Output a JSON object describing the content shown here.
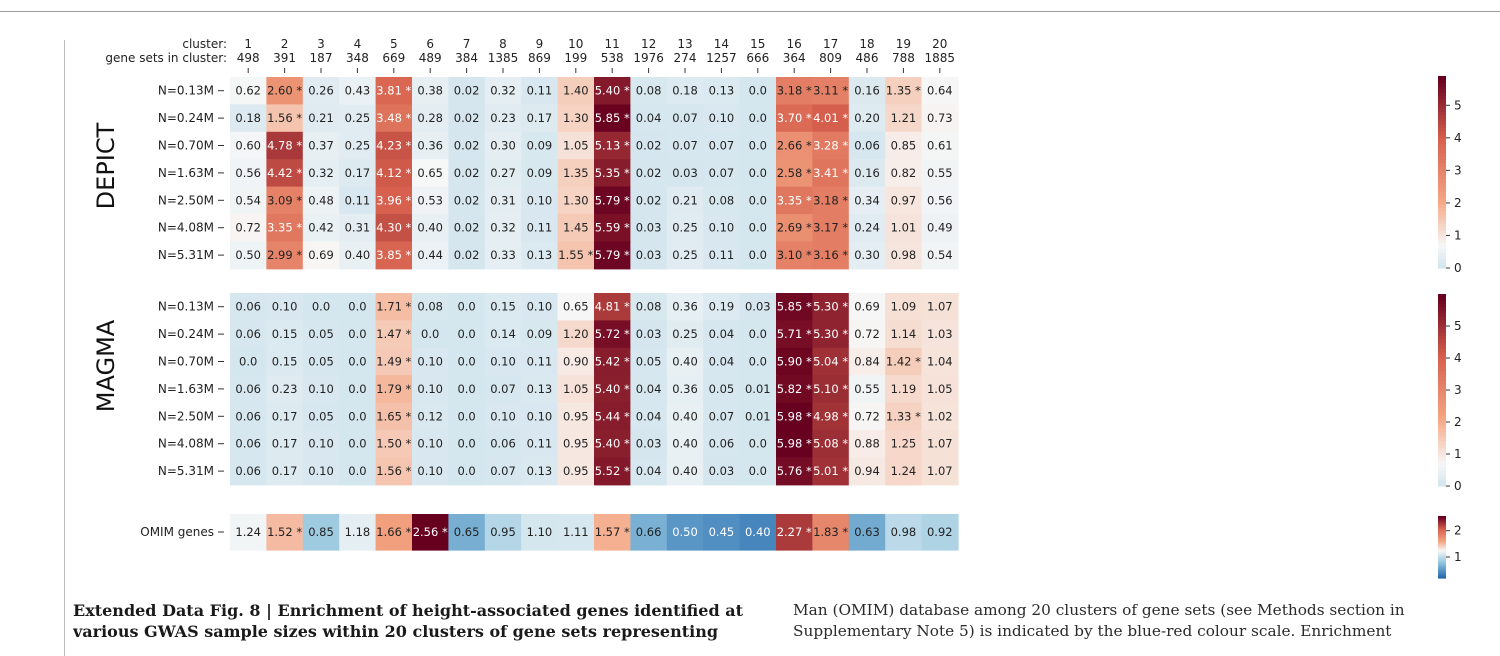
{
  "columns": {
    "cluster_label": "cluster:",
    "sets_label": "gene sets in cluster:",
    "clusters": [
      "1",
      "2",
      "3",
      "4",
      "5",
      "6",
      "7",
      "8",
      "9",
      "10",
      "11",
      "12",
      "13",
      "14",
      "15",
      "16",
      "17",
      "18",
      "19",
      "20"
    ],
    "gene_sets": [
      "498",
      "391",
      "187",
      "348",
      "669",
      "489",
      "384",
      "1385",
      "869",
      "199",
      "538",
      "1976",
      "274",
      "1257",
      "666",
      "364",
      "809",
      "486",
      "788",
      "1885"
    ]
  },
  "chart_data": [
    {
      "type": "heatmap",
      "panel": "DEPICT",
      "rows": [
        "N=0.13M",
        "N=0.24M",
        "N=0.70M",
        "N=1.63M",
        "N=2.50M",
        "N=4.08M",
        "N=5.31M"
      ],
      "values": [
        [
          0.62,
          2.6,
          0.26,
          0.43,
          3.81,
          0.38,
          0.02,
          0.32,
          0.11,
          1.4,
          5.4,
          0.08,
          0.18,
          0.13,
          0.0,
          3.18,
          3.11,
          0.16,
          1.35,
          0.64
        ],
        [
          0.18,
          1.56,
          0.21,
          0.25,
          3.48,
          0.28,
          0.02,
          0.23,
          0.17,
          1.3,
          5.85,
          0.04,
          0.07,
          0.1,
          0.0,
          3.7,
          4.01,
          0.2,
          1.21,
          0.73
        ],
        [
          0.6,
          4.78,
          0.37,
          0.25,
          4.23,
          0.36,
          0.02,
          0.3,
          0.09,
          1.05,
          5.13,
          0.02,
          0.07,
          0.07,
          0.0,
          2.66,
          3.28,
          0.06,
          0.85,
          0.61
        ],
        [
          0.56,
          4.42,
          0.32,
          0.17,
          4.12,
          0.65,
          0.02,
          0.27,
          0.09,
          1.35,
          5.35,
          0.02,
          0.03,
          0.07,
          0.0,
          2.58,
          3.41,
          0.16,
          0.82,
          0.55
        ],
        [
          0.54,
          3.09,
          0.48,
          0.11,
          3.96,
          0.53,
          0.02,
          0.31,
          0.1,
          1.3,
          5.79,
          0.02,
          0.21,
          0.08,
          0.0,
          3.35,
          3.18,
          0.34,
          0.97,
          0.56
        ],
        [
          0.72,
          3.35,
          0.42,
          0.31,
          4.3,
          0.4,
          0.02,
          0.32,
          0.11,
          1.45,
          5.59,
          0.03,
          0.25,
          0.1,
          0.0,
          2.69,
          3.17,
          0.24,
          1.01,
          0.49
        ],
        [
          0.5,
          2.99,
          0.69,
          0.4,
          3.85,
          0.44,
          0.02,
          0.33,
          0.13,
          1.55,
          5.79,
          0.03,
          0.25,
          0.11,
          0.0,
          3.1,
          3.16,
          0.3,
          0.98,
          0.54
        ]
      ],
      "labels": [
        [
          "0.62",
          "2.60 *",
          "0.26",
          "0.43",
          "3.81 *",
          "0.38",
          "0.02",
          "0.32",
          "0.11",
          "1.40",
          "5.40 *",
          "0.08",
          "0.18",
          "0.13",
          "0.0",
          "3.18 *",
          "3.11 *",
          "0.16",
          "1.35 *",
          "0.64"
        ],
        [
          "0.18",
          "1.56 *",
          "0.21",
          "0.25",
          "3.48 *",
          "0.28",
          "0.02",
          "0.23",
          "0.17",
          "1.30",
          "5.85 *",
          "0.04",
          "0.07",
          "0.10",
          "0.0",
          "3.70 *",
          "4.01 *",
          "0.20",
          "1.21",
          "0.73"
        ],
        [
          "0.60",
          "4.78 *",
          "0.37",
          "0.25",
          "4.23 *",
          "0.36",
          "0.02",
          "0.30",
          "0.09",
          "1.05",
          "5.13 *",
          "0.02",
          "0.07",
          "0.07",
          "0.0",
          "2.66 *",
          "3.28 *",
          "0.06",
          "0.85",
          "0.61"
        ],
        [
          "0.56",
          "4.42 *",
          "0.32",
          "0.17",
          "4.12 *",
          "0.65",
          "0.02",
          "0.27",
          "0.09",
          "1.35",
          "5.35 *",
          "0.02",
          "0.03",
          "0.07",
          "0.0",
          "2.58 *",
          "3.41 *",
          "0.16",
          "0.82",
          "0.55"
        ],
        [
          "0.54",
          "3.09 *",
          "0.48",
          "0.11",
          "3.96 *",
          "0.53",
          "0.02",
          "0.31",
          "0.10",
          "1.30",
          "5.79 *",
          "0.02",
          "0.21",
          "0.08",
          "0.0",
          "3.35 *",
          "3.18 *",
          "0.34",
          "0.97",
          "0.56"
        ],
        [
          "0.72",
          "3.35 *",
          "0.42",
          "0.31",
          "4.30 *",
          "0.40",
          "0.02",
          "0.32",
          "0.11",
          "1.45",
          "5.59 *",
          "0.03",
          "0.25",
          "0.10",
          "0.0",
          "2.69 *",
          "3.17 *",
          "0.24",
          "1.01",
          "0.49"
        ],
        [
          "0.50",
          "2.99 *",
          "0.69",
          "0.40",
          "3.85 *",
          "0.44",
          "0.02",
          "0.33",
          "0.13",
          "1.55 *",
          "5.79 *",
          "0.03",
          "0.25",
          "0.11",
          "0.0",
          "3.10 *",
          "3.16 *",
          "0.30",
          "0.98",
          "0.54"
        ]
      ],
      "colorbar": {
        "range": [
          0,
          5.9
        ],
        "ticks": [
          "5",
          "4",
          "3",
          "2",
          "1",
          "0"
        ]
      }
    },
    {
      "type": "heatmap",
      "panel": "MAGMA",
      "rows": [
        "N=0.13M",
        "N=0.24M",
        "N=0.70M",
        "N=1.63M",
        "N=2.50M",
        "N=4.08M",
        "N=5.31M"
      ],
      "values": [
        [
          0.06,
          0.1,
          0.0,
          0.0,
          1.71,
          0.08,
          0.0,
          0.15,
          0.1,
          0.65,
          4.81,
          0.08,
          0.36,
          0.19,
          0.03,
          5.85,
          5.3,
          0.69,
          1.09,
          1.07
        ],
        [
          0.06,
          0.15,
          0.05,
          0.0,
          1.47,
          0.0,
          0.0,
          0.14,
          0.09,
          1.2,
          5.72,
          0.03,
          0.25,
          0.04,
          0.0,
          5.71,
          5.3,
          0.72,
          1.14,
          1.03
        ],
        [
          0.0,
          0.15,
          0.05,
          0.0,
          1.49,
          0.1,
          0.0,
          0.1,
          0.11,
          0.9,
          5.42,
          0.05,
          0.4,
          0.04,
          0.0,
          5.9,
          5.04,
          0.84,
          1.42,
          1.04
        ],
        [
          0.06,
          0.23,
          0.1,
          0.0,
          1.79,
          0.1,
          0.0,
          0.07,
          0.13,
          1.05,
          5.4,
          0.04,
          0.36,
          0.05,
          0.01,
          5.82,
          5.1,
          0.55,
          1.19,
          1.05
        ],
        [
          0.06,
          0.17,
          0.05,
          0.0,
          1.65,
          0.12,
          0.0,
          0.1,
          0.1,
          0.95,
          5.44,
          0.04,
          0.4,
          0.07,
          0.01,
          5.98,
          4.98,
          0.72,
          1.33,
          1.02
        ],
        [
          0.06,
          0.17,
          0.1,
          0.0,
          1.5,
          0.1,
          0.0,
          0.06,
          0.11,
          0.95,
          5.4,
          0.03,
          0.4,
          0.06,
          0.0,
          5.98,
          5.08,
          0.88,
          1.25,
          1.07
        ],
        [
          0.06,
          0.17,
          0.1,
          0.0,
          1.56,
          0.1,
          0.0,
          0.07,
          0.13,
          0.95,
          5.52,
          0.04,
          0.4,
          0.03,
          0.0,
          5.76,
          5.01,
          0.94,
          1.24,
          1.07
        ]
      ],
      "labels": [
        [
          "0.06",
          "0.10",
          "0.0",
          "0.0",
          "1.71 *",
          "0.08",
          "0.0",
          "0.15",
          "0.10",
          "0.65",
          "4.81 *",
          "0.08",
          "0.36",
          "0.19",
          "0.03",
          "5.85 *",
          "5.30 *",
          "0.69",
          "1.09",
          "1.07"
        ],
        [
          "0.06",
          "0.15",
          "0.05",
          "0.0",
          "1.47 *",
          "0.0",
          "0.0",
          "0.14",
          "0.09",
          "1.20",
          "5.72 *",
          "0.03",
          "0.25",
          "0.04",
          "0.0",
          "5.71 *",
          "5.30 *",
          "0.72",
          "1.14",
          "1.03"
        ],
        [
          "0.0",
          "0.15",
          "0.05",
          "0.0",
          "1.49 *",
          "0.10",
          "0.0",
          "0.10",
          "0.11",
          "0.90",
          "5.42 *",
          "0.05",
          "0.40",
          "0.04",
          "0.0",
          "5.90 *",
          "5.04 *",
          "0.84",
          "1.42 *",
          "1.04"
        ],
        [
          "0.06",
          "0.23",
          "0.10",
          "0.0",
          "1.79 *",
          "0.10",
          "0.0",
          "0.07",
          "0.13",
          "1.05",
          "5.40 *",
          "0.04",
          "0.36",
          "0.05",
          "0.01",
          "5.82 *",
          "5.10 *",
          "0.55",
          "1.19",
          "1.05"
        ],
        [
          "0.06",
          "0.17",
          "0.05",
          "0.0",
          "1.65 *",
          "0.12",
          "0.0",
          "0.10",
          "0.10",
          "0.95",
          "5.44 *",
          "0.04",
          "0.40",
          "0.07",
          "0.01",
          "5.98 *",
          "4.98 *",
          "0.72",
          "1.33 *",
          "1.02"
        ],
        [
          "0.06",
          "0.17",
          "0.10",
          "0.0",
          "1.50 *",
          "0.10",
          "0.0",
          "0.06",
          "0.11",
          "0.95",
          "5.40 *",
          "0.03",
          "0.40",
          "0.06",
          "0.0",
          "5.98 *",
          "5.08 *",
          "0.88",
          "1.25",
          "1.07"
        ],
        [
          "0.06",
          "0.17",
          "0.10",
          "0.0",
          "1.56 *",
          "0.10",
          "0.0",
          "0.07",
          "0.13",
          "0.95",
          "5.52 *",
          "0.04",
          "0.40",
          "0.03",
          "0.0",
          "5.76 *",
          "5.01 *",
          "0.94",
          "1.24",
          "1.07"
        ]
      ],
      "colorbar": {
        "range": [
          0,
          6.0
        ],
        "ticks": [
          "5",
          "4",
          "3",
          "2",
          "1",
          "0"
        ]
      }
    },
    {
      "type": "heatmap",
      "panel": "OMIM",
      "rows": [
        "OMIM genes"
      ],
      "values": [
        [
          1.24,
          1.52,
          0.85,
          1.18,
          1.66,
          2.56,
          0.65,
          0.95,
          1.1,
          1.11,
          1.57,
          0.66,
          0.5,
          0.45,
          0.4,
          2.27,
          1.83,
          0.63,
          0.98,
          0.92
        ]
      ],
      "labels": [
        [
          "1.24",
          "1.52 *",
          "0.85",
          "1.18",
          "1.66 *",
          "2.56 *",
          "0.65",
          "0.95",
          "1.10",
          "1.11",
          "1.57 *",
          "0.66",
          "0.50",
          "0.45",
          "0.40",
          "2.27 *",
          "1.83 *",
          "0.63",
          "0.98",
          "0.92"
        ]
      ],
      "colorbar": {
        "range": [
          0.2,
          2.56
        ],
        "ticks": [
          "2",
          "1"
        ]
      }
    }
  ],
  "caption": {
    "left": [
      "Extended Data Fig. 8 | Enrichment of height-associated genes identified at",
      "various GWAS sample sizes within 20 clusters of gene sets representing"
    ],
    "right": [
      "Man (OMIM) database among 20 clusters of gene sets (see Methods section in",
      "Supplementary Note 5) is indicated by the blue-red colour scale. Enrichment"
    ]
  }
}
